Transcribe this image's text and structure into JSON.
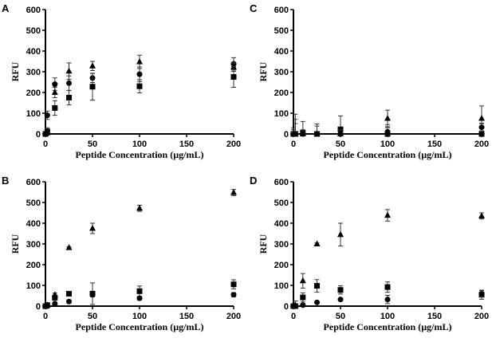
{
  "chart_data": [
    {
      "type": "scatter",
      "panel_label": "A",
      "xlabel": "Peptide Concentration (µg/mL)",
      "ylabel": "RFU",
      "xlim": [
        0,
        200
      ],
      "ylim": [
        0,
        600
      ],
      "xticks": [
        0,
        50,
        100,
        150,
        200
      ],
      "yticks": [
        0,
        100,
        200,
        300,
        400,
        500,
        600
      ],
      "x": [
        0,
        2,
        10,
        25,
        50,
        100,
        200
      ],
      "series": [
        {
          "marker": "circle",
          "values": [
            0,
            90,
            240,
            245,
            270,
            288,
            338
          ],
          "errors": [
            10,
            20,
            30,
            35,
            22,
            35,
            30
          ]
        },
        {
          "marker": "triangle",
          "values": [
            0,
            5,
            200,
            303,
            328,
            348,
            322
          ],
          "errors": [
            10,
            20,
            25,
            40,
            22,
            32,
            20
          ]
        },
        {
          "marker": "square",
          "values": [
            0,
            10,
            125,
            175,
            228,
            230,
            275
          ],
          "errors": [
            10,
            20,
            35,
            35,
            65,
            32,
            50
          ]
        }
      ]
    },
    {
      "type": "scatter",
      "panel_label": "B",
      "xlabel": "Peptide Concentration (µg/mL)",
      "ylabel": "RFU",
      "xlim": [
        0,
        200
      ],
      "ylim": [
        0,
        600
      ],
      "xticks": [
        0,
        50,
        100,
        150,
        200
      ],
      "yticks": [
        0,
        100,
        200,
        300,
        400,
        500,
        600
      ],
      "x": [
        0,
        2,
        10,
        25,
        50,
        100,
        200
      ],
      "series": [
        {
          "marker": "triangle",
          "values": [
            0,
            5,
            55,
            282,
            375,
            472,
            548
          ],
          "errors": [
            5,
            5,
            8,
            5,
            25,
            15,
            15
          ]
        },
        {
          "marker": "square",
          "values": [
            0,
            5,
            40,
            60,
            60,
            72,
            105
          ],
          "errors": [
            5,
            5,
            8,
            8,
            52,
            25,
            22
          ]
        },
        {
          "marker": "circle",
          "values": [
            0,
            0,
            12,
            22,
            55,
            38,
            55
          ],
          "errors": [
            3,
            3,
            5,
            8,
            10,
            8,
            10
          ]
        }
      ]
    },
    {
      "type": "scatter",
      "panel_label": "C",
      "xlabel": "Peptide Concentration (µg/mL)",
      "ylabel": "RFU",
      "xlim": [
        0,
        200
      ],
      "ylim": [
        0,
        600
      ],
      "xticks": [
        0,
        50,
        100,
        150,
        200
      ],
      "yticks": [
        0,
        100,
        200,
        300,
        400,
        500,
        600
      ],
      "x": [
        0,
        2,
        10,
        25,
        50,
        100,
        200
      ],
      "series": [
        {
          "marker": "square",
          "values": [
            0,
            0,
            5,
            0,
            22,
            0,
            0
          ],
          "errors": [
            30,
            95,
            55,
            48,
            65,
            45,
            50
          ]
        },
        {
          "marker": "triangle",
          "values": [
            0,
            0,
            0,
            0,
            0,
            75,
            75
          ],
          "errors": [
            20,
            50,
            20,
            38,
            20,
            40,
            60
          ]
        },
        {
          "marker": "circle",
          "values": [
            0,
            0,
            0,
            0,
            0,
            10,
            32
          ],
          "errors": [
            10,
            70,
            10,
            10,
            10,
            20,
            20
          ]
        }
      ]
    },
    {
      "type": "scatter",
      "panel_label": "D",
      "xlabel": "Peptide Concentration (µg/mL)",
      "ylabel": "RFU",
      "xlim": [
        0,
        200
      ],
      "ylim": [
        0,
        600
      ],
      "xticks": [
        0,
        50,
        100,
        150,
        200
      ],
      "yticks": [
        0,
        100,
        200,
        300,
        400,
        500,
        600
      ],
      "x": [
        0,
        2,
        10,
        25,
        50,
        100,
        200
      ],
      "series": [
        {
          "marker": "triangle",
          "values": [
            0,
            5,
            122,
            300,
            345,
            438,
            435
          ],
          "errors": [
            5,
            20,
            35,
            5,
            55,
            28,
            15
          ]
        },
        {
          "marker": "square",
          "values": [
            0,
            0,
            42,
            98,
            78,
            92,
            55
          ],
          "errors": [
            5,
            5,
            22,
            30,
            20,
            25,
            22
          ]
        },
        {
          "marker": "circle",
          "values": [
            0,
            0,
            5,
            18,
            32,
            32,
            60
          ],
          "errors": [
            3,
            3,
            5,
            5,
            5,
            20,
            15
          ]
        }
      ]
    }
  ]
}
